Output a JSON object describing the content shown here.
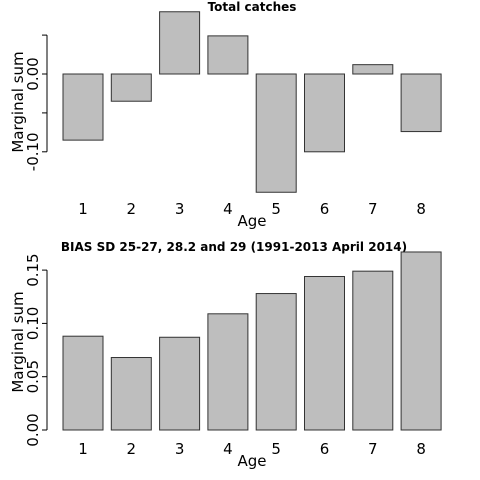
{
  "chart_data": [
    {
      "type": "bar",
      "title": "Total catches",
      "xlabel": "Age",
      "ylabel": "Marginal sum",
      "categories": [
        "1",
        "2",
        "3",
        "4",
        "5",
        "6",
        "7",
        "8"
      ],
      "values": [
        -0.085,
        -0.035,
        0.08,
        0.049,
        -0.152,
        -0.1,
        0.012,
        -0.074
      ],
      "ylim": [
        -0.16,
        0.085
      ],
      "yticks": [
        -0.1,
        0.0
      ],
      "ytick_labels": [
        "-0.10",
        "0.00"
      ],
      "yminor_ticks": [
        -0.05,
        0.05
      ],
      "grid": false
    },
    {
      "type": "bar",
      "title": "BIAS SD 25-27, 28.2 and 29 (1991-2013 April 2014)",
      "xlabel": "Age",
      "ylabel": "Marginal sum",
      "categories": [
        "1",
        "2",
        "3",
        "4",
        "5",
        "6",
        "7",
        "8"
      ],
      "values": [
        0.088,
        0.068,
        0.087,
        0.109,
        0.128,
        0.144,
        0.149,
        0.167
      ],
      "ylim": [
        0,
        0.17
      ],
      "yticks": [
        0.0,
        0.05,
        0.1,
        0.15
      ],
      "ytick_labels": [
        "0.00",
        "0.05",
        "0.10",
        "0.15"
      ],
      "grid": false
    }
  ]
}
